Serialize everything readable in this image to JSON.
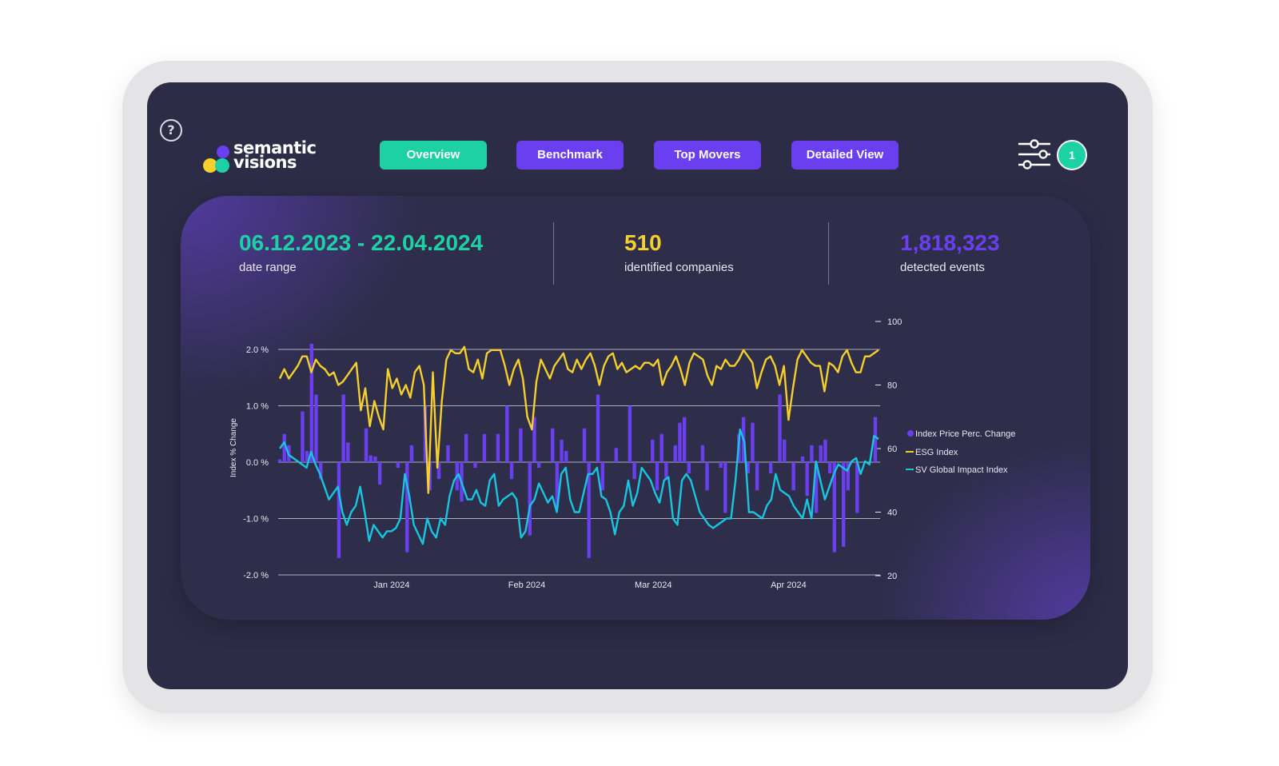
{
  "app": {
    "logo_line1": "semantic",
    "logo_line2": "visions",
    "help_glyph": "?",
    "filter_count": "1"
  },
  "nav": {
    "items": [
      {
        "label": "Overview",
        "active": true
      },
      {
        "label": "Benchmark",
        "active": false
      },
      {
        "label": "Top Movers",
        "active": false
      },
      {
        "label": "Detailed View",
        "active": false
      }
    ]
  },
  "kpis": [
    {
      "value": "06.12.2023 - 22.04.2024",
      "label": "date range",
      "color": "#1ed1a5"
    },
    {
      "value": "510",
      "label": "identified companies",
      "color": "#f5cf2b"
    },
    {
      "value": "1,818,323",
      "label": "detected events",
      "color": "#6a3ff0"
    }
  ],
  "colors": {
    "bars": "#6a3ff0",
    "esg": "#f5cf2b",
    "impact": "#18c6e0",
    "accent_green": "#1ed1a5",
    "background": "#2d2c47"
  },
  "icons": {
    "help": "help-icon",
    "filter": "filter-sliders-icon",
    "logo": "logo-mark-icon"
  },
  "chart_data": {
    "type": "bar+line",
    "x_range": [
      "2023-12-06",
      "2024-04-22"
    ],
    "x_ticks": [
      "Jan 2024",
      "Feb 2024",
      "Mar 2024",
      "Apr 2024"
    ],
    "x_tick_dates": [
      "2024-01-01",
      "2024-02-01",
      "2024-03-01",
      "2024-04-01"
    ],
    "ylabel": "Index % Change",
    "y_left_ticks": [
      "2.0 %",
      "1.0 %",
      "0.0 %",
      "-1.0 %",
      "-2.0 %"
    ],
    "y_left_range": [
      -2.0,
      2.2
    ],
    "y_right_ticks": [
      "100",
      "80",
      "60",
      "40",
      "20"
    ],
    "y_right_range": [
      20,
      100
    ],
    "grid": true,
    "legend_position": "right",
    "series": [
      {
        "name": "Index Price Perc. Change",
        "kind": "bar",
        "values": [
          0.05,
          0.5,
          0.3,
          0.0,
          0.0,
          0.9,
          0.2,
          2.1,
          1.2,
          -0.3,
          0.0,
          0.0,
          0.0,
          -1.7,
          1.2,
          0.35,
          0.0,
          0.0,
          0.0,
          0.6,
          0.12,
          0.1,
          -0.4,
          0.0,
          0.0,
          0.0,
          -0.1,
          0.0,
          -1.6,
          0.3,
          0.0,
          0.0,
          1.0,
          -0.5,
          0.0,
          -0.3,
          0.0,
          0.3,
          0.0,
          -0.5,
          -0.7,
          0.5,
          0.0,
          -0.1,
          0.0,
          0.5,
          0.0,
          0.0,
          0.5,
          0.0,
          1.0,
          -0.3,
          0.0,
          0.6,
          0.0,
          -1.3,
          0.8,
          -0.1,
          0.0,
          0.0,
          0.6,
          -0.8,
          0.4,
          0.2,
          0.0,
          0.0,
          0.0,
          0.6,
          -1.7,
          0.0,
          1.2,
          -0.5,
          0.0,
          0.0,
          0.25,
          0.0,
          0.0,
          1.0,
          -0.3,
          0.0,
          0.0,
          0.0,
          0.4,
          -0.5,
          0.5,
          -0.3,
          0.0,
          0.3,
          0.7,
          0.8,
          -0.2,
          0.0,
          0.0,
          0.3,
          -0.5,
          0.0,
          0.0,
          -0.1,
          -0.9,
          0.0,
          0.0,
          0.5,
          0.8,
          -0.2,
          0.7,
          -0.5,
          0.0,
          0.0,
          -0.2,
          0.0,
          1.2,
          0.4,
          0.0,
          -0.5,
          0.0,
          0.1,
          -0.6,
          0.3,
          -0.9,
          0.3,
          0.4,
          -0.2,
          -1.6,
          0.0,
          -1.5,
          -0.5,
          0.0,
          -0.9,
          0.0,
          0.0,
          0.0,
          0.8
        ]
      },
      {
        "name": "ESG Index",
        "kind": "line",
        "axis": "right",
        "values": [
          82,
          85,
          82,
          84,
          86,
          89,
          89,
          84,
          88,
          86,
          85,
          83,
          84,
          80,
          81,
          83,
          85,
          87,
          72,
          79,
          67,
          75,
          70,
          66,
          85,
          79,
          82,
          77,
          80,
          76,
          84,
          86,
          80,
          46,
          84,
          54,
          75,
          88,
          91,
          90,
          90,
          92,
          85,
          84,
          88,
          82,
          90,
          91,
          91,
          91,
          86,
          80,
          85,
          88,
          82,
          70,
          66,
          81,
          88,
          85,
          82,
          86,
          88,
          90,
          85,
          84,
          88,
          85,
          88,
          90,
          86,
          80,
          86,
          89,
          90,
          85,
          87,
          84,
          85,
          86,
          85,
          87,
          87,
          86,
          88,
          80,
          84,
          86,
          89,
          85,
          80,
          87,
          90,
          89,
          88,
          83,
          80,
          86,
          85,
          88,
          86,
          86,
          88,
          91,
          89,
          87,
          79,
          84,
          88,
          89,
          86,
          80,
          86,
          69,
          79,
          88,
          91,
          89,
          87,
          86,
          86,
          78,
          87,
          86,
          84,
          89,
          91,
          87,
          84,
          84,
          89,
          89,
          90,
          91
        ]
      },
      {
        "name": "SV Global Impact Index",
        "kind": "line",
        "axis": "right",
        "values": [
          60,
          62,
          58,
          57,
          56,
          55,
          54,
          59,
          55,
          52,
          48,
          44,
          46,
          48,
          40,
          36,
          40,
          42,
          48,
          40,
          31,
          36,
          34,
          32,
          34,
          34,
          35,
          38,
          52,
          45,
          36,
          33,
          30,
          38,
          34,
          32,
          38,
          36,
          45,
          50,
          52,
          48,
          44,
          44,
          47,
          43,
          42,
          50,
          52,
          42,
          44,
          45,
          46,
          44,
          32,
          34,
          42,
          44,
          49,
          46,
          43,
          45,
          40,
          52,
          54,
          44,
          40,
          40,
          46,
          52,
          52,
          54,
          45,
          44,
          40,
          33,
          40,
          42,
          50,
          42,
          46,
          54,
          52,
          50,
          46,
          43,
          50,
          51,
          38,
          36,
          50,
          52,
          50,
          45,
          40,
          38,
          36,
          35,
          36,
          37,
          38,
          38,
          50,
          66,
          62,
          40,
          40,
          39,
          38,
          42,
          44,
          52,
          47,
          46,
          45,
          42,
          40,
          38,
          44,
          38,
          56,
          50,
          44,
          48,
          52,
          55,
          54,
          53,
          56,
          57,
          52,
          56,
          55,
          64,
          63
        ]
      }
    ]
  }
}
